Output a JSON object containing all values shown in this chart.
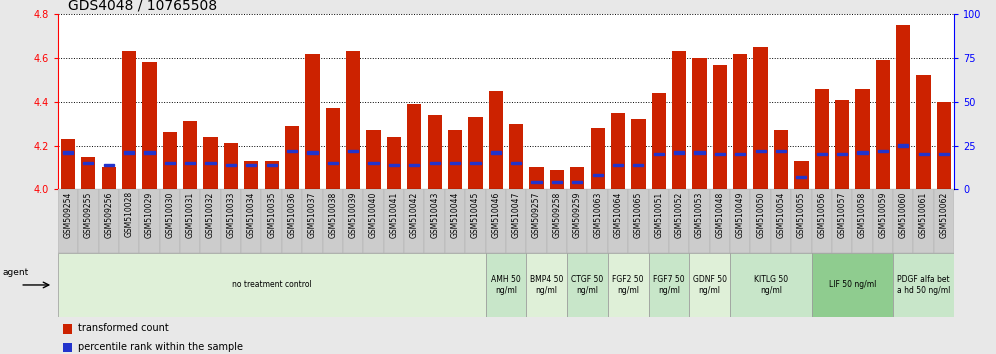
{
  "title": "GDS4048 / 10765508",
  "samples": [
    "GSM509254",
    "GSM509255",
    "GSM509256",
    "GSM510028",
    "GSM510029",
    "GSM510030",
    "GSM510031",
    "GSM510032",
    "GSM510033",
    "GSM510034",
    "GSM510035",
    "GSM510036",
    "GSM510037",
    "GSM510038",
    "GSM510039",
    "GSM510040",
    "GSM510041",
    "GSM510042",
    "GSM510043",
    "GSM510044",
    "GSM510045",
    "GSM510046",
    "GSM510047",
    "GSM509257",
    "GSM509258",
    "GSM509259",
    "GSM510063",
    "GSM510064",
    "GSM510065",
    "GSM510051",
    "GSM510052",
    "GSM510053",
    "GSM510048",
    "GSM510049",
    "GSM510050",
    "GSM510054",
    "GSM510055",
    "GSM510056",
    "GSM510057",
    "GSM510058",
    "GSM510059",
    "GSM510060",
    "GSM510061",
    "GSM510062"
  ],
  "red_values": [
    4.23,
    4.15,
    4.1,
    4.63,
    4.58,
    4.26,
    4.31,
    4.24,
    4.21,
    4.13,
    4.13,
    4.29,
    4.62,
    4.37,
    4.63,
    4.27,
    4.24,
    4.39,
    4.34,
    4.27,
    4.33,
    4.45,
    4.3,
    4.1,
    4.09,
    4.1,
    4.28,
    4.35,
    4.32,
    4.44,
    4.63,
    4.6,
    4.57,
    4.62,
    4.65,
    4.27,
    4.13,
    4.46,
    4.41,
    4.46,
    4.59,
    4.75,
    4.52,
    4.4
  ],
  "blue_values": [
    21,
    15,
    14,
    21,
    21,
    15,
    15,
    15,
    14,
    14,
    14,
    22,
    21,
    15,
    22,
    15,
    14,
    14,
    15,
    15,
    15,
    21,
    15,
    4,
    4,
    4,
    8,
    14,
    14,
    20,
    21,
    21,
    20,
    20,
    22,
    22,
    7,
    20,
    20,
    21,
    22,
    25,
    20,
    20
  ],
  "groups": [
    {
      "label": "no treatment control",
      "start": 0,
      "end": 21,
      "color": "#dff0d8"
    },
    {
      "label": "AMH 50\nng/ml",
      "start": 21,
      "end": 23,
      "color": "#c8e6c9"
    },
    {
      "label": "BMP4 50\nng/ml",
      "start": 23,
      "end": 25,
      "color": "#dff0d8"
    },
    {
      "label": "CTGF 50\nng/ml",
      "start": 25,
      "end": 27,
      "color": "#c8e6c9"
    },
    {
      "label": "FGF2 50\nng/ml",
      "start": 27,
      "end": 29,
      "color": "#dff0d8"
    },
    {
      "label": "FGF7 50\nng/ml",
      "start": 29,
      "end": 31,
      "color": "#c8e6c9"
    },
    {
      "label": "GDNF 50\nng/ml",
      "start": 31,
      "end": 33,
      "color": "#dff0d8"
    },
    {
      "label": "KITLG 50\nng/ml",
      "start": 33,
      "end": 37,
      "color": "#c8e6c9"
    },
    {
      "label": "LIF 50 ng/ml",
      "start": 37,
      "end": 41,
      "color": "#8fcc8f"
    },
    {
      "label": "PDGF alfa bet\na hd 50 ng/ml",
      "start": 41,
      "end": 44,
      "color": "#c8e6c9"
    }
  ],
  "ylim_left": [
    4.0,
    4.8
  ],
  "ylim_right": [
    0,
    100
  ],
  "yticks_left": [
    4.0,
    4.2,
    4.4,
    4.6,
    4.8
  ],
  "yticks_right": [
    0,
    25,
    50,
    75,
    100
  ],
  "bar_color": "#cc2200",
  "blue_color": "#2233cc",
  "bg_color": "#e8e8e8",
  "plot_bg": "#ffffff",
  "title_fontsize": 10,
  "tick_fontsize": 5.5,
  "bar_width": 0.7
}
